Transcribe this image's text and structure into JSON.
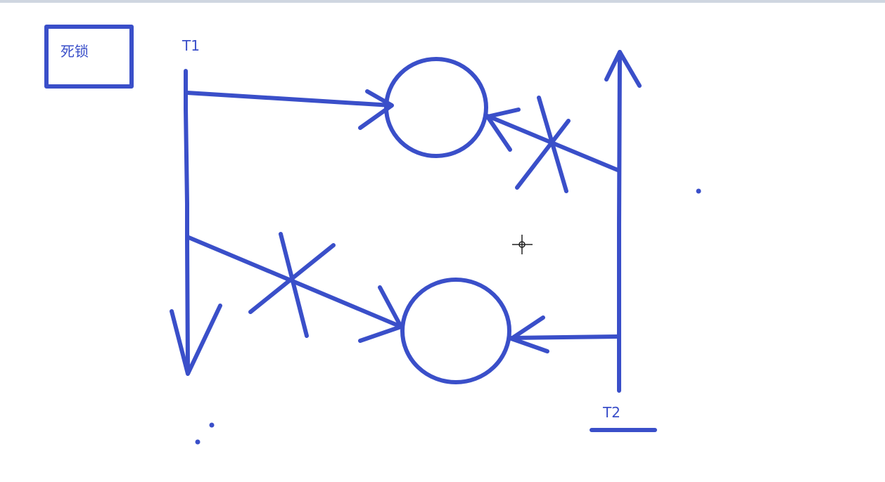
{
  "title_box": {
    "text": "死锁"
  },
  "threads": {
    "t1": {
      "label": "T1"
    },
    "t2": {
      "label": "T2"
    }
  },
  "colors": {
    "ink": "#3a4fc9",
    "background": "#ffffff"
  },
  "icons": {
    "cursor": "crosshair-cursor-icon"
  }
}
